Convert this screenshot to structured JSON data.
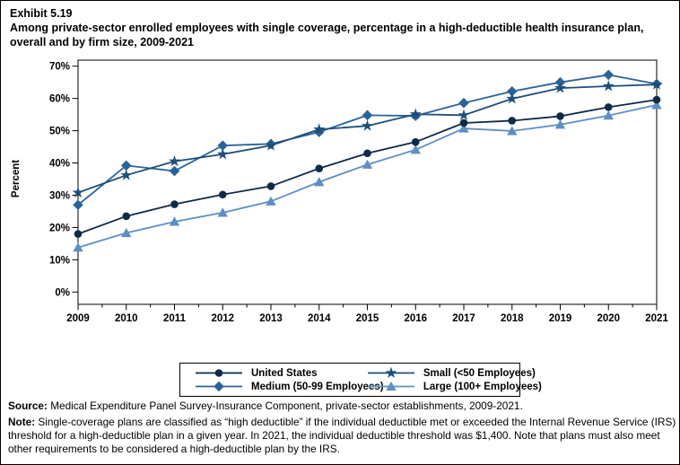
{
  "title": {
    "exhibit": "Exhibit 5.19",
    "heading": "Among private-sector enrolled employees with single coverage, percentage in a high-deductible health insurance plan, overall and by firm size, 2009-2021"
  },
  "chart_data": {
    "type": "line",
    "x": [
      2009,
      2010,
      2011,
      2012,
      2013,
      2014,
      2015,
      2016,
      2017,
      2018,
      2019,
      2020,
      2021
    ],
    "xlabel": "",
    "ylabel": "Percent",
    "ylim": [
      0,
      70
    ],
    "ytick_step": 10,
    "ytick_suffix": "%",
    "grid": false,
    "legend_position": "bottom-center-boxed",
    "series": [
      {
        "name": "United States",
        "marker": "circle",
        "color": "#0e2a47",
        "values": [
          18.0,
          23.5,
          27.2,
          30.2,
          32.8,
          38.3,
          43.0,
          46.5,
          52.4,
          53.1,
          54.5,
          57.3,
          59.6
        ]
      },
      {
        "name": "Small (<50 Employees)",
        "marker": "star",
        "color": "#1f4e79",
        "values": [
          30.8,
          36.2,
          40.5,
          42.7,
          45.4,
          50.4,
          51.5,
          55.1,
          54.8,
          59.9,
          63.2,
          63.8,
          64.3
        ]
      },
      {
        "name": "Medium (50-99 Employees)",
        "marker": "diamond",
        "color": "#2b6399",
        "values": [
          27.0,
          39.2,
          37.5,
          45.4,
          45.9,
          49.6,
          54.8,
          54.6,
          58.6,
          62.2,
          65.0,
          67.3,
          64.5
        ]
      },
      {
        "name": "Large (100+ Employees)",
        "marker": "triangle",
        "color": "#5e8fc4",
        "values": [
          13.8,
          18.3,
          21.8,
          24.6,
          28.1,
          34.1,
          39.5,
          44.1,
          50.7,
          49.9,
          51.9,
          54.7,
          58.0
        ]
      }
    ]
  },
  "footer": {
    "source_label": "Source:",
    "source_text": " Medical Expenditure Panel Survey-Insurance Component, private-sector establishments, 2009-2021.",
    "note_label": "Note:",
    "note_text": " Single-coverage plans are classified as “high deductible” if the individual deductible met or exceeded the Internal Revenue Service (IRS) threshold for a high-deductible plan in a given year. In 2021, the individual deductible threshold was $1,400. Note that plans must also meet other requirements to be considered a high-deductible plan by the IRS."
  }
}
